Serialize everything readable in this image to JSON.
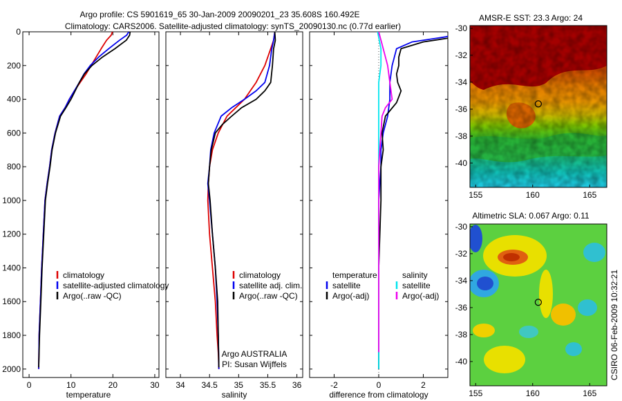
{
  "title_line1": "Argo profile: CS 5901619_65 30-Jan-2009 20090201_23 35.608S 160.492E",
  "title_line2": "Climatology: CARS2006. Satellite-adjusted climatology: synTS_20090130.nc (0.77d earlier)",
  "credit": "CSIRO 06-Feb-2009 10:32:21",
  "colors": {
    "climatology": "#dd0000",
    "satellite": "#0000ee",
    "argo": "#000000",
    "salinity_satellite": "#00e5ee",
    "salinity_argo": "#ee00ee",
    "float_marker": "#000000"
  },
  "chart_data": [
    {
      "id": "temperature",
      "type": "line",
      "xlabel": "temperature",
      "ylabel": "",
      "xlim": [
        -1.5,
        31
      ],
      "ylim": [
        2050,
        0
      ],
      "xticks": [
        0,
        10,
        20,
        30
      ],
      "yticks": [
        0,
        200,
        400,
        600,
        800,
        1000,
        1200,
        1400,
        1600,
        1800,
        2000
      ],
      "legend": {
        "position": "lower-right",
        "entries": [
          "climatology",
          "satellite-adjusted climatology",
          "Argo(..raw -QC)"
        ]
      },
      "series": [
        {
          "name": "climatology",
          "x": [
            19.9,
            19.6,
            18.5,
            17.2,
            16.0,
            14.8,
            13.6,
            12.2,
            10.8,
            9.6,
            8.6,
            7.3,
            6.2,
            5.4,
            4.9,
            4.3,
            3.8,
            3.4,
            3.0,
            2.7,
            2.4,
            2.3
          ],
          "y": [
            0,
            20,
            50,
            100,
            150,
            200,
            250,
            300,
            350,
            400,
            450,
            500,
            600,
            700,
            800,
            900,
            1000,
            1200,
            1400,
            1600,
            1800,
            2000
          ]
        },
        {
          "name": "satellite-adjusted climatology",
          "x": [
            23.8,
            23.3,
            21.6,
            19.0,
            16.6,
            14.6,
            13.1,
            12.0,
            10.8,
            9.6,
            8.6,
            7.3,
            6.2,
            5.4,
            4.9,
            4.3,
            3.8,
            3.4,
            3.0,
            2.7,
            2.4,
            2.3
          ],
          "y": [
            0,
            20,
            50,
            100,
            150,
            200,
            250,
            300,
            350,
            400,
            450,
            500,
            600,
            700,
            800,
            900,
            1000,
            1200,
            1400,
            1600,
            1800,
            2000
          ]
        },
        {
          "name": "Argo(..raw -QC)",
          "x": [
            24.1,
            24.0,
            23.2,
            20.5,
            17.5,
            15.0,
            13.2,
            12.0,
            11.0,
            10.0,
            8.8,
            7.5,
            6.3,
            5.5,
            5.0,
            4.4,
            3.9,
            3.5,
            3.1,
            2.8,
            2.5,
            2.3
          ],
          "y": [
            0,
            20,
            50,
            100,
            150,
            200,
            250,
            300,
            350,
            400,
            450,
            500,
            600,
            700,
            800,
            900,
            1000,
            1200,
            1400,
            1600,
            1800,
            1990
          ]
        }
      ]
    },
    {
      "id": "salinity",
      "type": "line",
      "xlabel": "salinity",
      "ylabel": "",
      "xlim": [
        33.75,
        36.1
      ],
      "ylim": [
        2050,
        0
      ],
      "xticks": [
        34,
        34.5,
        35,
        35.5,
        36
      ],
      "legend": {
        "position": "lower-right",
        "entries": [
          "climatology",
          "satellite adj. clim.",
          "Argo(..raw -QC)"
        ]
      },
      "annotations": [
        "Argo AUSTRALIA",
        "PI: Susan Wijffels"
      ],
      "series": [
        {
          "name": "climatology",
          "x": [
            35.62,
            35.6,
            35.55,
            35.45,
            35.3,
            35.1,
            34.95,
            34.8,
            34.65,
            34.55,
            34.5,
            34.48,
            34.47,
            34.5,
            34.55,
            34.6,
            34.63,
            34.65,
            34.66
          ],
          "y": [
            0,
            50,
            100,
            200,
            300,
            400,
            450,
            500,
            600,
            700,
            800,
            900,
            1000,
            1200,
            1400,
            1600,
            1800,
            1900,
            2000
          ]
        },
        {
          "name": "satellite adj. clim.",
          "x": [
            35.62,
            35.6,
            35.57,
            35.53,
            35.45,
            35.3,
            35.1,
            34.88,
            34.7,
            34.58,
            34.52,
            34.5,
            34.47,
            34.5,
            34.55,
            34.6,
            34.63,
            34.65,
            34.66
          ],
          "y": [
            0,
            50,
            100,
            200,
            300,
            350,
            400,
            450,
            500,
            600,
            700,
            800,
            900,
            1000,
            1200,
            1400,
            1600,
            1800,
            2000
          ]
        },
        {
          "name": "Argo(..raw -QC)",
          "x": [
            35.62,
            35.63,
            35.6,
            35.58,
            35.55,
            35.45,
            35.3,
            35.05,
            34.88,
            34.72,
            34.6,
            34.53,
            34.5,
            34.48,
            34.51,
            34.55,
            34.6,
            34.64,
            34.66
          ],
          "y": [
            0,
            50,
            100,
            200,
            300,
            350,
            400,
            450,
            500,
            550,
            600,
            700,
            800,
            900,
            1000,
            1200,
            1400,
            1600,
            1990
          ]
        }
      ]
    },
    {
      "id": "difference",
      "type": "line",
      "xlabel": "difference from climatology",
      "ylabel": "",
      "xlim": [
        -3.1,
        3.1
      ],
      "ylim": [
        2050,
        0
      ],
      "xticks": [
        -2,
        0,
        2
      ],
      "legend": {
        "position": "lower-right",
        "entries": [
          "temperature",
          "satellite",
          "Argo(-adj)",
          "salinity",
          "satellite",
          "Argo(-adj)"
        ]
      },
      "series": [
        {
          "name": "satellite",
          "x": [
            4.0,
            3.0,
            1.5,
            0.8,
            0.6,
            0.5,
            0.5,
            0.4,
            0.2,
            0.1,
            0.1,
            0.05,
            0.0,
            0.0,
            0.0,
            0.0
          ],
          "y": [
            0,
            30,
            60,
            100,
            200,
            300,
            400,
            500,
            600,
            700,
            800,
            900,
            1000,
            1400,
            1800,
            2000
          ]
        },
        {
          "name": "Argo(-adj)",
          "x": [
            4.2,
            3.5,
            2.0,
            1.0,
            0.9,
            0.9,
            0.8,
            0.85,
            1.0,
            0.8,
            0.3,
            0.15,
            0.2,
            0.1,
            0.1,
            0.0,
            0.0,
            0.0
          ],
          "y": [
            0,
            30,
            60,
            100,
            150,
            200,
            250,
            300,
            350,
            420,
            500,
            600,
            700,
            800,
            1000,
            1400,
            1800,
            2000
          ]
        },
        {
          "name": "satellite",
          "x": [
            -0.05,
            0.1,
            0.1,
            0.0,
            0.0,
            0.0,
            0.0,
            0.0,
            0.0,
            0.0
          ],
          "y": [
            0,
            100,
            200,
            300,
            400,
            500,
            800,
            1200,
            1600,
            2000
          ]
        },
        {
          "name": "Argo(-adj)",
          "x": [
            0.0,
            0.2,
            0.4,
            0.5,
            0.6,
            0.3,
            0.15,
            0.1,
            0.0,
            0.0,
            0.0,
            0.0
          ],
          "y": [
            0,
            100,
            200,
            300,
            400,
            450,
            500,
            600,
            800,
            1200,
            1600,
            1900
          ]
        }
      ]
    },
    {
      "id": "sst_map",
      "type": "heatmap",
      "title": "AMSR-E SST: 23.3  Argo: 24",
      "xlim": [
        154.5,
        166.5
      ],
      "ylim": [
        -41.8,
        -29.8
      ],
      "xticks": [
        155,
        160,
        165
      ],
      "yticks": [
        -30,
        -32,
        -34,
        -36,
        -38,
        -40
      ],
      "float_position": {
        "lon": 160.492,
        "lat": -35.608
      }
    },
    {
      "id": "sla_map",
      "type": "heatmap",
      "title": "Altimetric SLA: 0.067  Argo: 0.11",
      "xlim": [
        154.5,
        166.5
      ],
      "ylim": [
        -41.8,
        -29.8
      ],
      "xticks": [
        155,
        160,
        165
      ],
      "yticks": [
        -30,
        -32,
        -34,
        -36,
        -38,
        -40
      ],
      "float_position": {
        "lon": 160.492,
        "lat": -35.608
      }
    }
  ]
}
